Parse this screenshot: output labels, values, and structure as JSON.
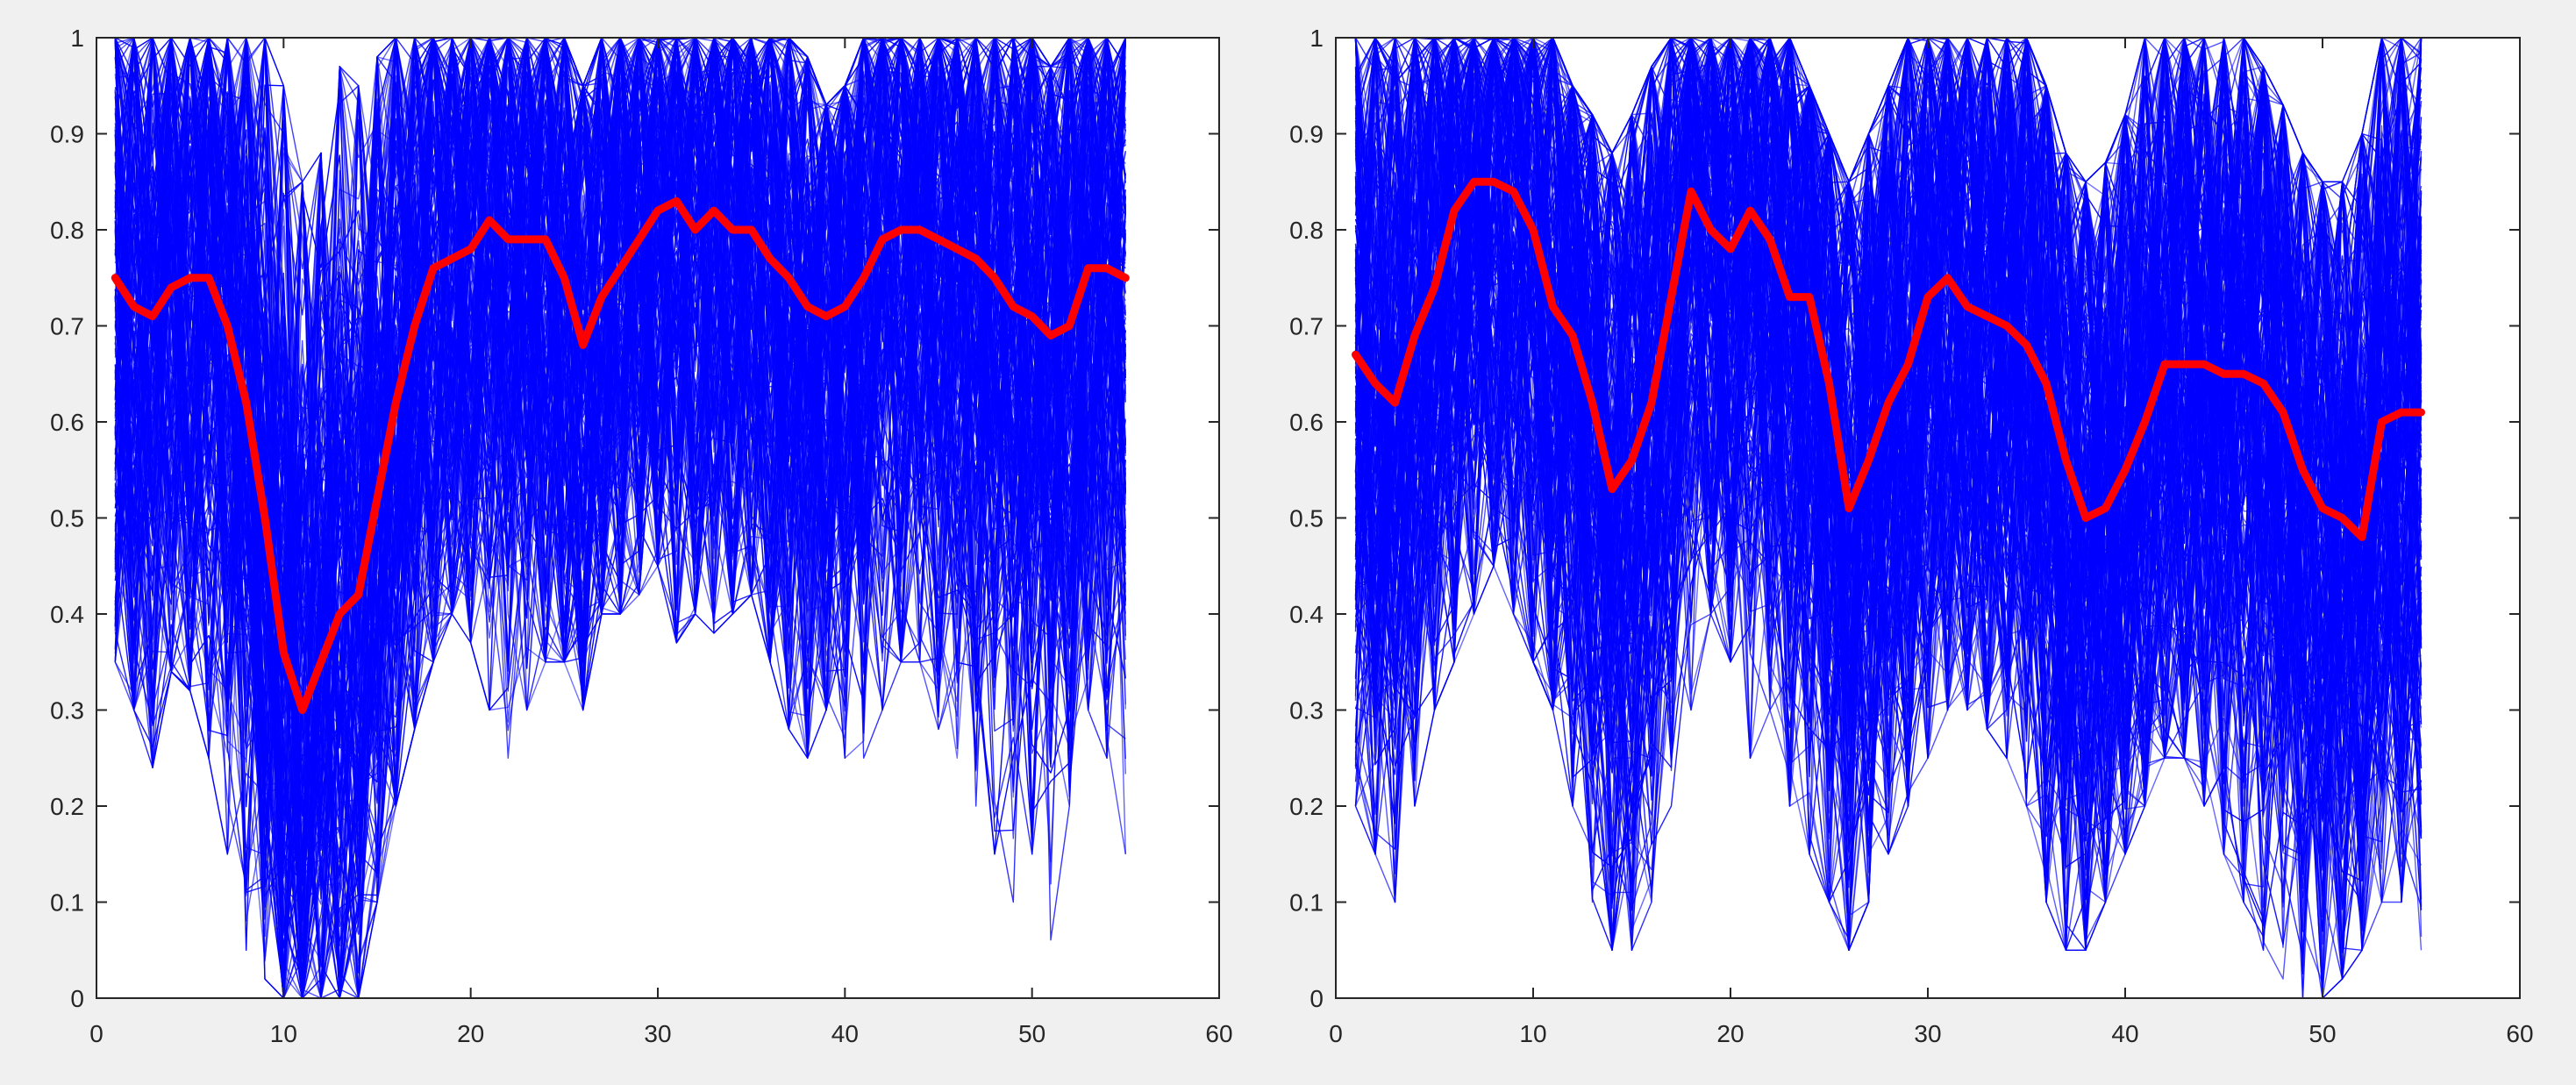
{
  "colors": {
    "background": "#f0f0f0",
    "plot_background": "#ffffff",
    "axis": "#262626",
    "series_lines": "#0000ff",
    "mean_line": "#ff0000"
  },
  "chart_data": [
    {
      "type": "line",
      "title": "",
      "xlabel": "",
      "ylabel": "",
      "xlim": [
        0,
        60
      ],
      "ylim": [
        0,
        1
      ],
      "xticks": [
        "0",
        "10",
        "20",
        "30",
        "40",
        "50",
        "60"
      ],
      "yticks": [
        "0",
        "0.1",
        "0.2",
        "0.3",
        "0.4",
        "0.5",
        "0.6",
        "0.7",
        "0.8",
        "0.9",
        "1"
      ],
      "grid": false,
      "legend": "none",
      "series": [
        {
          "role": "mean",
          "color": "#ff0000",
          "x": [
            1,
            2,
            3,
            4,
            5,
            6,
            7,
            8,
            9,
            10,
            11,
            12,
            13,
            14,
            15,
            16,
            17,
            18,
            19,
            20,
            21,
            22,
            23,
            24,
            25,
            26,
            27,
            28,
            29,
            30,
            31,
            32,
            33,
            34,
            35,
            36,
            37,
            38,
            39,
            40,
            41,
            42,
            43,
            44,
            45,
            46,
            47,
            48,
            49,
            50,
            51,
            52,
            53,
            54,
            55
          ],
          "values": [
            0.75,
            0.72,
            0.71,
            0.74,
            0.75,
            0.75,
            0.7,
            0.62,
            0.5,
            0.36,
            0.3,
            0.35,
            0.4,
            0.42,
            0.52,
            0.62,
            0.7,
            0.76,
            0.77,
            0.78,
            0.81,
            0.79,
            0.79,
            0.79,
            0.75,
            0.68,
            0.73,
            0.76,
            0.79,
            0.82,
            0.83,
            0.8,
            0.82,
            0.8,
            0.8,
            0.77,
            0.75,
            0.72,
            0.71,
            0.72,
            0.75,
            0.79,
            0.8,
            0.8,
            0.79,
            0.78,
            0.77,
            0.75,
            0.72,
            0.71,
            0.69,
            0.7,
            0.76,
            0.76,
            0.75
          ]
        }
      ],
      "blue_line_bundle": {
        "color": "#0000ff",
        "x": [
          1,
          2,
          3,
          4,
          5,
          6,
          7,
          8,
          9,
          10,
          11,
          12,
          13,
          14,
          15,
          16,
          17,
          18,
          19,
          20,
          21,
          22,
          23,
          24,
          25,
          26,
          27,
          28,
          29,
          30,
          31,
          32,
          33,
          34,
          35,
          36,
          37,
          38,
          39,
          40,
          41,
          42,
          43,
          44,
          45,
          46,
          47,
          48,
          49,
          50,
          51,
          52,
          53,
          54,
          55
        ],
        "upper": [
          1,
          1,
          1,
          1,
          1,
          1,
          1,
          1,
          1,
          0.95,
          0.85,
          0.88,
          0.97,
          0.95,
          0.98,
          1,
          1,
          1,
          1,
          1,
          1,
          1,
          1,
          1,
          1,
          0.95,
          1,
          1,
          1,
          1,
          1,
          1,
          1,
          1,
          1,
          1,
          1,
          0.98,
          0.93,
          0.95,
          1,
          1,
          1,
          1,
          1,
          1,
          1,
          1,
          1,
          1,
          0.97,
          1,
          1,
          1,
          1
        ],
        "lower": [
          0.35,
          0.3,
          0.24,
          0.34,
          0.32,
          0.25,
          0.15,
          0.05,
          0.02,
          0,
          0,
          0,
          0,
          0,
          0.1,
          0.2,
          0.28,
          0.35,
          0.4,
          0.37,
          0.3,
          0.25,
          0.3,
          0.35,
          0.35,
          0.3,
          0.4,
          0.4,
          0.42,
          0.45,
          0.37,
          0.4,
          0.38,
          0.4,
          0.42,
          0.35,
          0.28,
          0.25,
          0.3,
          0.25,
          0.25,
          0.3,
          0.35,
          0.35,
          0.28,
          0.25,
          0.2,
          0.15,
          0.1,
          0.15,
          0.05,
          0.2,
          0.3,
          0.25,
          0.15
        ],
        "line_count": 220
      }
    },
    {
      "type": "line",
      "title": "",
      "xlabel": "",
      "ylabel": "",
      "xlim": [
        0,
        60
      ],
      "ylim": [
        0,
        1
      ],
      "xticks": [
        "0",
        "10",
        "20",
        "30",
        "40",
        "50",
        "60"
      ],
      "yticks": [
        "0",
        "0.1",
        "0.2",
        "0.3",
        "0.4",
        "0.5",
        "0.6",
        "0.7",
        "0.8",
        "0.9",
        "1"
      ],
      "grid": false,
      "legend": "none",
      "series": [
        {
          "role": "mean",
          "color": "#ff0000",
          "x": [
            1,
            2,
            3,
            4,
            5,
            6,
            7,
            8,
            9,
            10,
            11,
            12,
            13,
            14,
            15,
            16,
            17,
            18,
            19,
            20,
            21,
            22,
            23,
            24,
            25,
            26,
            27,
            28,
            29,
            30,
            31,
            32,
            33,
            34,
            35,
            36,
            37,
            38,
            39,
            40,
            41,
            42,
            43,
            44,
            45,
            46,
            47,
            48,
            49,
            50,
            51,
            52,
            53,
            54,
            55
          ],
          "values": [
            0.67,
            0.64,
            0.62,
            0.69,
            0.74,
            0.82,
            0.85,
            0.85,
            0.84,
            0.8,
            0.72,
            0.69,
            0.62,
            0.53,
            0.56,
            0.62,
            0.73,
            0.84,
            0.8,
            0.78,
            0.82,
            0.79,
            0.73,
            0.73,
            0.64,
            0.51,
            0.56,
            0.62,
            0.66,
            0.73,
            0.75,
            0.72,
            0.71,
            0.7,
            0.68,
            0.64,
            0.56,
            0.5,
            0.51,
            0.55,
            0.6,
            0.66,
            0.66,
            0.66,
            0.65,
            0.65,
            0.64,
            0.61,
            0.55,
            0.51,
            0.5,
            0.48,
            0.6,
            0.61,
            0.61
          ]
        }
      ],
      "blue_line_bundle": {
        "color": "#0000ff",
        "x": [
          1,
          2,
          3,
          4,
          5,
          6,
          7,
          8,
          9,
          10,
          11,
          12,
          13,
          14,
          15,
          16,
          17,
          18,
          19,
          20,
          21,
          22,
          23,
          24,
          25,
          26,
          27,
          28,
          29,
          30,
          31,
          32,
          33,
          34,
          35,
          36,
          37,
          38,
          39,
          40,
          41,
          42,
          43,
          44,
          45,
          46,
          47,
          48,
          49,
          50,
          51,
          52,
          53,
          54,
          55
        ],
        "upper": [
          1,
          1,
          1,
          1,
          1,
          1,
          1,
          1,
          1,
          1,
          1,
          0.95,
          0.92,
          0.88,
          0.92,
          0.97,
          1,
          1,
          1,
          1,
          1,
          1,
          1,
          0.95,
          0.9,
          0.85,
          0.9,
          0.95,
          1,
          1,
          1,
          1,
          1,
          1,
          1,
          0.95,
          0.88,
          0.85,
          0.87,
          0.92,
          1,
          1,
          1,
          1,
          1,
          1,
          0.97,
          0.93,
          0.88,
          0.85,
          0.85,
          0.9,
          1,
          1,
          1
        ],
        "lower": [
          0.2,
          0.15,
          0.1,
          0.2,
          0.3,
          0.35,
          0.4,
          0.45,
          0.4,
          0.35,
          0.3,
          0.2,
          0.1,
          0.05,
          0.05,
          0.1,
          0.2,
          0.3,
          0.4,
          0.35,
          0.25,
          0.3,
          0.2,
          0.15,
          0.1,
          0.05,
          0.1,
          0.15,
          0.2,
          0.25,
          0.3,
          0.3,
          0.28,
          0.25,
          0.2,
          0.1,
          0.05,
          0.05,
          0.1,
          0.15,
          0.2,
          0.25,
          0.25,
          0.2,
          0.15,
          0.1,
          0.05,
          0.02,
          0,
          0,
          0.02,
          0.05,
          0.1,
          0.1,
          0.05
        ],
        "line_count": 240
      }
    }
  ]
}
